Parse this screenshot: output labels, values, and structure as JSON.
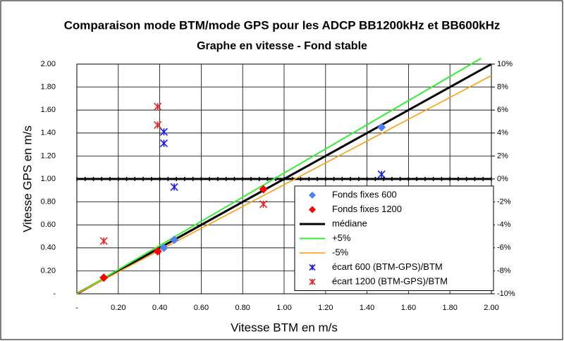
{
  "chart_data": {
    "type": "scatter",
    "title": "Comparaison mode BTM/mode GPS pour les ADCP BB1200kHz et BB600kHz",
    "subtitle": "Graphe en vitesse - Fond stable",
    "x_label": "Vitesse BTM en m/s",
    "y_label": "Vitesse GPS en m/s",
    "xlim": [
      0,
      2
    ],
    "ylim": [
      0,
      2
    ],
    "y2lim": [
      -10,
      10
    ],
    "xticks": [
      {
        "value": 0,
        "label": "-"
      },
      {
        "value": 0.2,
        "label": "0.20"
      },
      {
        "value": 0.4,
        "label": "0.40"
      },
      {
        "value": 0.6,
        "label": "0.60"
      },
      {
        "value": 0.8,
        "label": "0.80"
      },
      {
        "value": 1,
        "label": "1.00"
      },
      {
        "value": 1.2,
        "label": "1.20"
      },
      {
        "value": 1.4,
        "label": "1.40"
      },
      {
        "value": 1.6,
        "label": "1.60"
      },
      {
        "value": 1.8,
        "label": "1.80"
      },
      {
        "value": 2,
        "label": "2.00"
      }
    ],
    "yticks": [
      {
        "value": 0,
        "label": "-"
      },
      {
        "value": 0.2,
        "label": "0.20"
      },
      {
        "value": 0.4,
        "label": "0.40"
      },
      {
        "value": 0.6,
        "label": "0.60"
      },
      {
        "value": 0.8,
        "label": "0.80"
      },
      {
        "value": 1,
        "label": "1.00"
      },
      {
        "value": 1.2,
        "label": "1.20"
      },
      {
        "value": 1.4,
        "label": "1.40"
      },
      {
        "value": 1.6,
        "label": "1.60"
      },
      {
        "value": 1.8,
        "label": "1.80"
      },
      {
        "value": 2,
        "label": "2.00"
      }
    ],
    "y2ticks": [
      {
        "value": -10,
        "label": "-10%"
      },
      {
        "value": -8,
        "label": "-8%"
      },
      {
        "value": -6,
        "label": "-6%"
      },
      {
        "value": -4,
        "label": "-4%"
      },
      {
        "value": -2,
        "label": "-2%"
      },
      {
        "value": 0,
        "label": "0%"
      },
      {
        "value": 2,
        "label": "2%"
      },
      {
        "value": 4,
        "label": "4%"
      },
      {
        "value": 6,
        "label": "6%"
      },
      {
        "value": 8,
        "label": "8%"
      },
      {
        "value": 10,
        "label": "10%"
      }
    ],
    "grid": true,
    "legend": "lower right",
    "series": [
      {
        "name": "Fonds fixes 600",
        "color": "#4f81f5",
        "marker": "diamond",
        "x": [
          0.42,
          0.47,
          1.47
        ],
        "values": [
          0.4,
          0.47,
          1.45
        ]
      },
      {
        "name": "Fonds fixes 1200",
        "color": "#ff0000",
        "marker": "diamond",
        "x": [
          0.13,
          0.39,
          0.9
        ],
        "values": [
          0.14,
          0.37,
          0.91
        ]
      },
      {
        "name": "médiane",
        "color": "#000000",
        "marker": "line",
        "width": 3,
        "x": [
          0,
          2
        ],
        "values": [
          0,
          2
        ]
      },
      {
        "name": "+5%",
        "color": "#33ee33",
        "marker": "line",
        "width": 2,
        "x": [
          0,
          1.95
        ],
        "values": [
          0,
          2.05
        ]
      },
      {
        "name": "-5%",
        "color": "#ff9900",
        "marker": "line",
        "width": 1.5,
        "x": [
          0,
          2
        ],
        "values": [
          0,
          1.9
        ]
      },
      {
        "name": "écart 600 (BTM-GPS)/BTM",
        "color": "#1a1aee",
        "marker": "asterisk",
        "axis": "y2",
        "x": [
          0.42,
          0.42,
          0.47,
          1.47
        ],
        "values": [
          4.1,
          3.1,
          -0.7,
          0.4
        ]
      },
      {
        "name": "écart 1200 (BTM-GPS)/BTM",
        "color": "#ee2222",
        "marker": "asterisk",
        "axis": "y2",
        "x": [
          0.39,
          0.39,
          0.13,
          0.9
        ],
        "values": [
          6.3,
          4.7,
          -5.4,
          -2.2
        ]
      }
    ]
  }
}
